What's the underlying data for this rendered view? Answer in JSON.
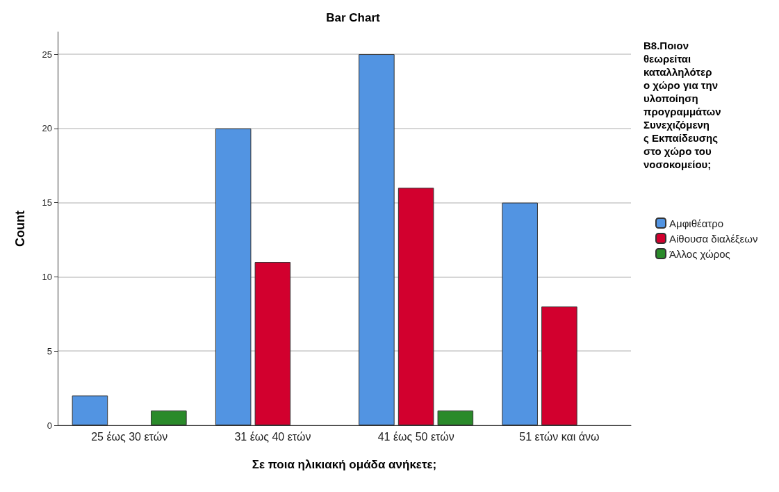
{
  "chart_data": {
    "type": "bar",
    "title": "Bar Chart",
    "xlabel": "Σε ποια ηλικιακή ομάδα ανήκετε;",
    "ylabel": "Count",
    "legend_title": "Β8.Ποιον θεωρείται καταλληλότερο χώρο για την υλοποίηση προγραμμάτων Συνεχιζόμενης Εκπαίδευσης στο χώρο του νοσοκομείου;",
    "categories": [
      "25 έως 30 ετών",
      "31 έως 40 ετών",
      "41 έως 50 ετών",
      "51 ετών και άνω"
    ],
    "series": [
      {
        "name": "Αμφιθέατρο",
        "color": "#5294e2",
        "values": [
          2,
          20,
          25,
          15
        ]
      },
      {
        "name": "Αίθουσα διαλέξεων",
        "color": "#d2002e",
        "values": [
          null,
          11,
          16,
          8
        ]
      },
      {
        "name": "Άλλος χώρος",
        "color": "#2a8a2a",
        "values": [
          1,
          null,
          1,
          null
        ]
      }
    ],
    "ylim": [
      0,
      26.5
    ],
    "yticks": [
      0,
      5,
      10,
      15,
      20,
      25
    ],
    "grid": "y",
    "legend": "right"
  }
}
